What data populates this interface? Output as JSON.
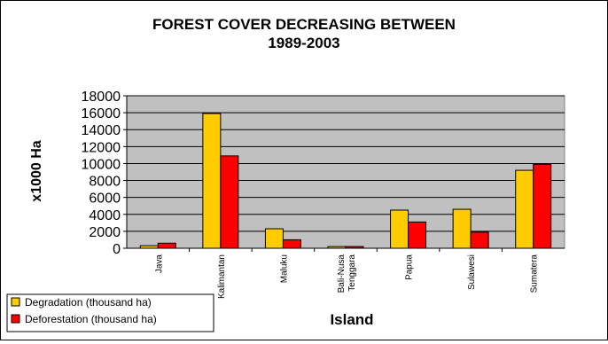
{
  "chart_data": {
    "type": "bar",
    "title_line1": "FOREST COVER DECREASING BETWEEN",
    "title_line2": "1989-2003",
    "xlabel": "Island",
    "ylabel": "x1000 Ha",
    "ylim": [
      0,
      18000
    ],
    "yticks": [
      "0",
      "2000",
      "4000",
      "6000",
      "8000",
      "10000",
      "12000",
      "14000",
      "16000",
      "18000"
    ],
    "categories": [
      "Java",
      "Kalimantan",
      "Maluku",
      "Bali-Nusa Tenggara",
      "Papua",
      "Sulawesi",
      "Sumatera"
    ],
    "category_lines": [
      [
        "Java"
      ],
      [
        "Kalimantan"
      ],
      [
        "Maluku"
      ],
      [
        "Bali-Nusa",
        "Tenggara"
      ],
      [
        "Papua"
      ],
      [
        "Sulawesi"
      ],
      [
        "Sumatera"
      ]
    ],
    "series": [
      {
        "name": "Degradation (thousand ha)",
        "color": "#FFCC00",
        "values": [
          300,
          15900,
          2300,
          200,
          4500,
          4600,
          9200
        ]
      },
      {
        "name": "Deforestation (thousand ha)",
        "color": "#FF0000",
        "values": [
          600,
          10900,
          1000,
          200,
          3100,
          1900,
          9900
        ]
      }
    ],
    "plot_background": "#C0C0C0",
    "grid": true,
    "legend_position": "bottom-left"
  }
}
